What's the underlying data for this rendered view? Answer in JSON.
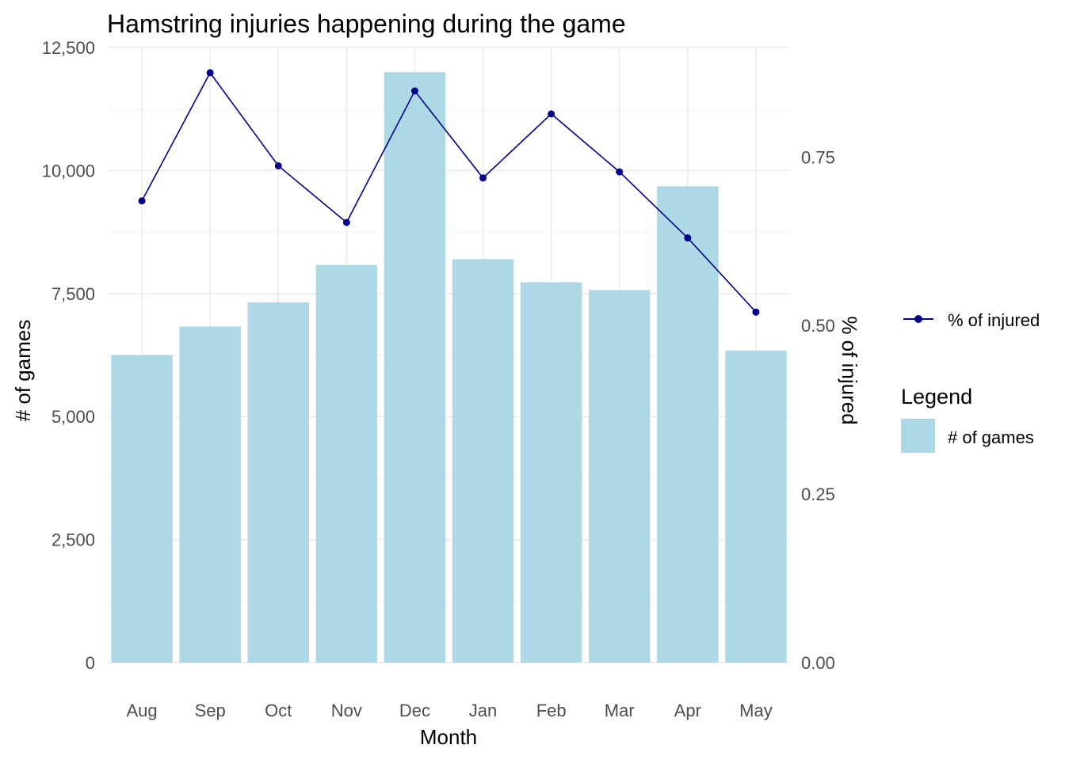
{
  "chart_data": {
    "type": "bar",
    "title": "Hamstring injuries happening during the game",
    "xlabel": "Month",
    "ylabel": "# of games",
    "y2label": "% of injured",
    "categories": [
      "Aug",
      "Sep",
      "Oct",
      "Nov",
      "Dec",
      "Jan",
      "Feb",
      "Mar",
      "Apr",
      "May"
    ],
    "series": [
      {
        "name": "# of games",
        "type": "bar",
        "axis": "left",
        "color": "#add8e6",
        "values": [
          6250,
          6830,
          7320,
          8080,
          12000,
          8200,
          7730,
          7570,
          9680,
          6340
        ]
      },
      {
        "name": "% of injured",
        "type": "line",
        "axis": "right",
        "color": "#00008b",
        "values": [
          0.685,
          0.875,
          0.737,
          0.653,
          0.848,
          0.719,
          0.814,
          0.728,
          0.63,
          0.52
        ]
      }
    ],
    "ylim": [
      0,
      12500
    ],
    "yticks": [
      0,
      2500,
      5000,
      7500,
      10000,
      12500
    ],
    "ytick_labels": [
      "0",
      "2,500",
      "5,000",
      "7,500",
      "10,000",
      "12,500"
    ],
    "y2lim": [
      0,
      0.9125
    ],
    "y2ticks": [
      0,
      0.25,
      0.5,
      0.75
    ],
    "y2tick_labels": [
      "0.00",
      "0.25",
      "0.50",
      "0.75"
    ],
    "grid": true,
    "legend": {
      "placement": "right",
      "line_entry": "% of injured",
      "fill_title": "Legend",
      "fill_entry": "# of games"
    }
  }
}
